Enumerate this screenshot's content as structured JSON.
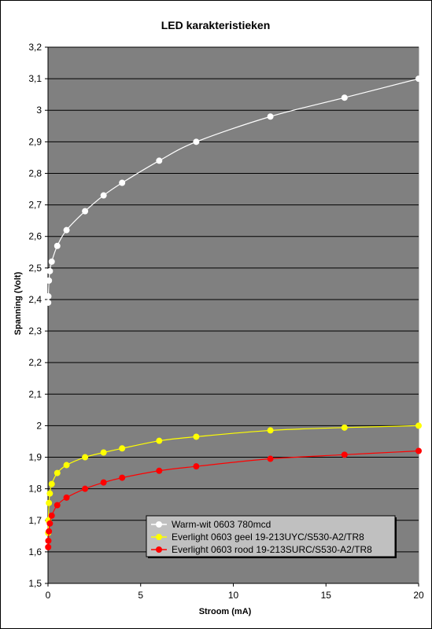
{
  "chart_data": {
    "type": "line",
    "title": "LED karakteristieken",
    "xlabel": "Stroom (mA)",
    "ylabel": "Spanning (Volt)",
    "xlim": [
      0,
      20
    ],
    "ylim": [
      1.5,
      3.2
    ],
    "x_ticks": [
      0,
      5,
      10,
      15,
      20
    ],
    "y_ticks": [
      "1,5",
      "1,6",
      "1,7",
      "1,8",
      "1,9",
      "2",
      "2,1",
      "2,2",
      "2,3",
      "2,4",
      "2,5",
      "2,6",
      "2,7",
      "2,8",
      "2,9",
      "3",
      "3,1",
      "3,2"
    ],
    "y_tick_values": [
      1.5,
      1.6,
      1.7,
      1.8,
      1.9,
      2.0,
      2.1,
      2.2,
      2.3,
      2.4,
      2.5,
      2.6,
      2.7,
      2.8,
      2.9,
      3.0,
      3.1,
      3.2
    ],
    "grid": "horizontal",
    "plot_background": "#808080",
    "legend_position": "bottom-right",
    "series": [
      {
        "name": "Warm-wit 0603 780mcd",
        "color": "#ffffff",
        "x": [
          0.01,
          0.02,
          0.05,
          0.1,
          0.2,
          0.5,
          1,
          2,
          3,
          4,
          6,
          8,
          12,
          16,
          20
        ],
        "y": [
          2.39,
          2.41,
          2.46,
          2.49,
          2.52,
          2.57,
          2.62,
          2.68,
          2.73,
          2.77,
          2.84,
          2.9,
          2.98,
          3.04,
          3.1
        ]
      },
      {
        "name": "Everlight 0603 geel 19-213UYC/S530-A2/TR8",
        "color": "#ffff00",
        "x": [
          0.01,
          0.02,
          0.05,
          0.1,
          0.2,
          0.5,
          1,
          2,
          3,
          4,
          6,
          8,
          12,
          16,
          20
        ],
        "y": [
          1.66,
          1.7,
          1.755,
          1.785,
          1.815,
          1.85,
          1.875,
          1.9,
          1.915,
          1.928,
          1.952,
          1.965,
          1.985,
          1.994,
          2.0
        ]
      },
      {
        "name": "Everlight 0603 rood 19-213SURC/S530-A2/TR8",
        "color": "#ff0000",
        "x": [
          0.01,
          0.02,
          0.05,
          0.1,
          0.2,
          0.5,
          1,
          2,
          3,
          4,
          6,
          8,
          12,
          16,
          20
        ],
        "y": [
          1.615,
          1.635,
          1.665,
          1.69,
          1.715,
          1.748,
          1.772,
          1.8,
          1.82,
          1.835,
          1.857,
          1.871,
          1.895,
          1.908,
          1.92
        ]
      }
    ]
  }
}
